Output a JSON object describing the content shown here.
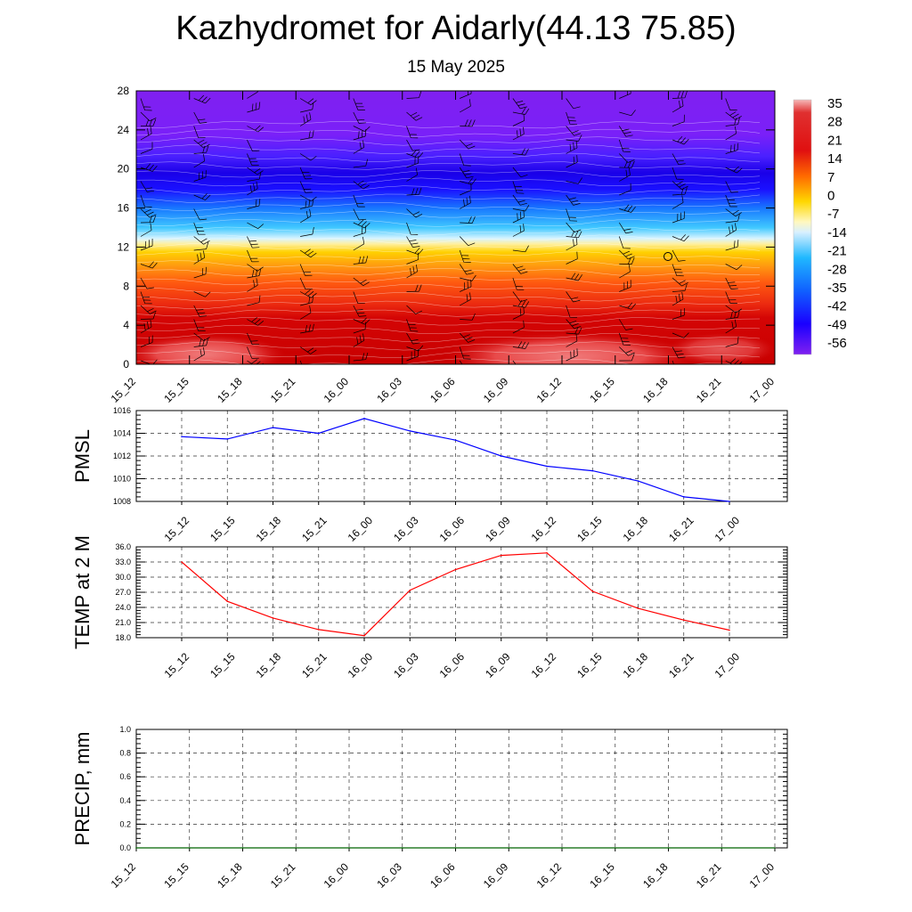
{
  "title": "Kazhydromet for Aidarly(44.13 75.85)",
  "subtitle": "15 May 2025",
  "time_labels": [
    "15_12",
    "15_15",
    "15_18",
    "15_21",
    "16_00",
    "16_03",
    "16_06",
    "16_09",
    "16_12",
    "16_15",
    "16_18",
    "16_21",
    "17_00"
  ],
  "chart_data": [
    {
      "type": "heatmap",
      "name": "temperature-wind-profile",
      "y_ticks": [
        0,
        4,
        8,
        12,
        16,
        20,
        24,
        28
      ],
      "ylim": [
        0,
        28
      ],
      "colorbar_labels": [
        "35",
        "28",
        "21",
        "14",
        "7",
        "0",
        "-7",
        "-14",
        "-21",
        "-28",
        "-35",
        "-42",
        "-49",
        "-56"
      ],
      "colors": {
        "top": "#7f1fff",
        "blue": "#1a00ff",
        "light_blue": "#00ccff",
        "pale": "#fff7b0",
        "yellow": "#ffd700",
        "orange": "#ff6600",
        "red": "#e01010",
        "dark_red": "#cc0000",
        "pink_red": "#e84545",
        "light_red": "#f08080"
      },
      "note_ring_level": 11
    },
    {
      "type": "line",
      "name": "pmsl",
      "ylabel": "PMSL",
      "ylim": [
        1008,
        1016
      ],
      "y_ticks": [
        "1008",
        "1010",
        "1012",
        "1014",
        "1016"
      ],
      "x": [
        "15_12",
        "15_15",
        "15_18",
        "15_21",
        "16_00",
        "16_03",
        "16_06",
        "16_09",
        "16_12",
        "16_15",
        "16_18",
        "16_21",
        "17_00"
      ],
      "values": [
        1013.7,
        1013.5,
        1014.5,
        1014.0,
        1015.3,
        1014.2,
        1013.4,
        1012.0,
        1011.1,
        1010.7,
        1009.8,
        1008.4,
        1008.0
      ],
      "color": "#0000ff"
    },
    {
      "type": "line",
      "name": "temp-2m",
      "ylabel": "TEMP at 2 M",
      "ylim": [
        18,
        36
      ],
      "y_ticks": [
        "18.0",
        "21.0",
        "24.0",
        "27.0",
        "30.0",
        "33.0",
        "36.0"
      ],
      "x": [
        "15_12",
        "15_15",
        "15_18",
        "15_21",
        "16_00",
        "16_03",
        "16_06",
        "16_09",
        "16_12",
        "16_15",
        "16_18",
        "16_21",
        "17_00"
      ],
      "values": [
        33.0,
        25.2,
        21.9,
        19.6,
        18.4,
        27.4,
        31.5,
        34.3,
        34.8,
        27.2,
        23.8,
        21.5,
        19.5
      ],
      "color": "#ff0000"
    },
    {
      "type": "line",
      "name": "precip",
      "ylabel": "PRECIP, mm",
      "ylim": [
        0,
        1
      ],
      "y_ticks": [
        "0.0",
        "0.2",
        "0.4",
        "0.6",
        "0.8",
        "1.0"
      ],
      "x": [
        "15_12",
        "15_15",
        "15_18",
        "15_21",
        "16_00",
        "16_03",
        "16_06",
        "16_09",
        "16_12",
        "16_15",
        "16_18",
        "16_21",
        "17_00"
      ],
      "values": [
        0,
        0,
        0,
        0,
        0,
        0,
        0,
        0,
        0,
        0,
        0,
        0,
        0
      ],
      "color": "#006400"
    }
  ]
}
